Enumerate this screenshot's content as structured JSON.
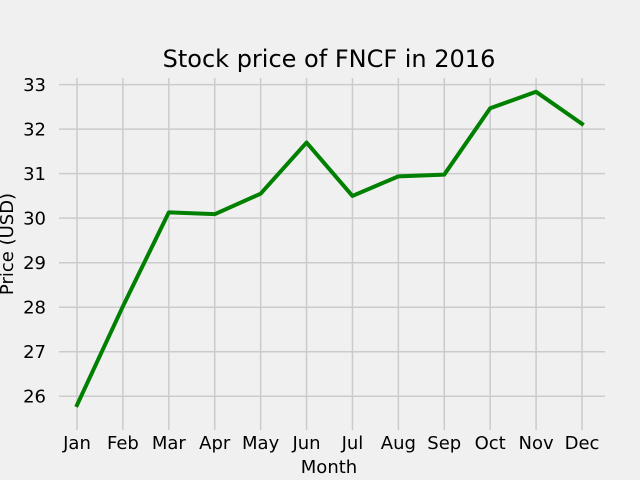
{
  "chart_data": {
    "type": "line",
    "title": "Stock price of FNCF in 2016",
    "xlabel": "Month",
    "ylabel": "Price (USD)",
    "categories": [
      "Jan",
      "Feb",
      "Mar",
      "Apr",
      "May",
      "Jun",
      "Jul",
      "Aug",
      "Sep",
      "Oct",
      "Nov",
      "Dec"
    ],
    "series": [
      {
        "values": [
          25.8,
          28.02,
          30.13,
          30.09,
          30.55,
          31.7,
          30.5,
          30.94,
          30.98,
          32.47,
          32.84,
          32.12
        ],
        "color": "#008000"
      }
    ],
    "ylim": [
      25.6,
      33.15
    ],
    "yticks": [
      26,
      27,
      28,
      29,
      30,
      31,
      32,
      33
    ],
    "grid": true,
    "background": "#f0f0f0",
    "grid_color": "#cbcbcb"
  }
}
